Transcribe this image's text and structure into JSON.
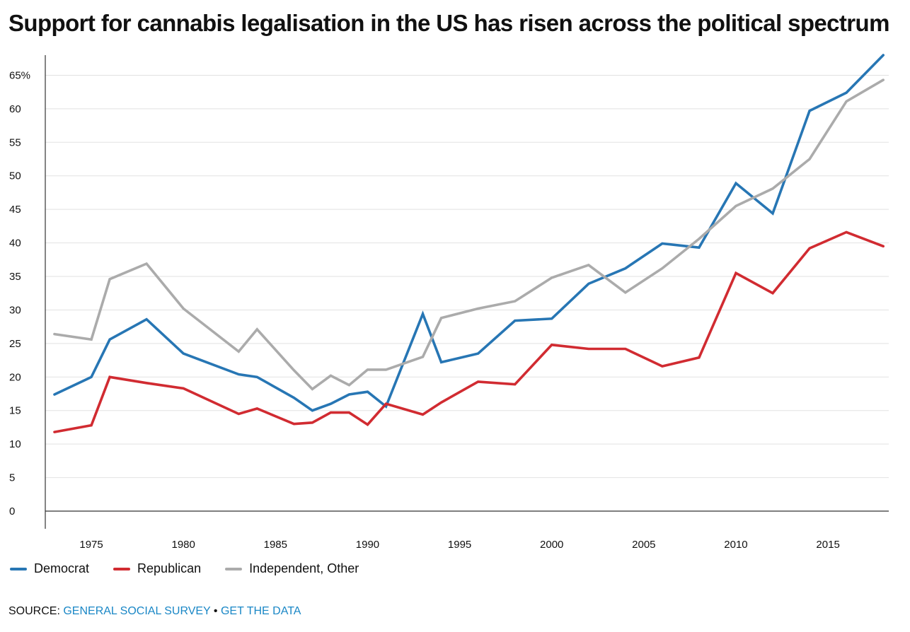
{
  "chart_data": {
    "type": "line",
    "title": "Support for cannabis legalisation in the US has risen across the political spectrum",
    "xlabel": "",
    "ylabel": "",
    "xlim": [
      1972.5,
      2018.3
    ],
    "ylim": [
      0,
      68
    ],
    "y_ticks": [
      0,
      5,
      10,
      15,
      20,
      25,
      30,
      35,
      40,
      45,
      50,
      55,
      60,
      65
    ],
    "y_tick_labels": [
      "0",
      "5",
      "10",
      "15",
      "20",
      "25",
      "30",
      "35",
      "40",
      "45",
      "50",
      "55",
      "60",
      "65%"
    ],
    "x_ticks": [
      1975,
      1980,
      1985,
      1990,
      1995,
      2000,
      2005,
      2010,
      2015
    ],
    "x_tick_labels": [
      "1975",
      "1980",
      "1985",
      "1990",
      "1995",
      "2000",
      "2005",
      "2010",
      "2015"
    ],
    "x": [
      1973,
      1975,
      1976,
      1978,
      1980,
      1983,
      1984,
      1986,
      1987,
      1988,
      1989,
      1990,
      1991,
      1993,
      1994,
      1996,
      1998,
      2000,
      2002,
      2004,
      2006,
      2008,
      2010,
      2012,
      2014,
      2016,
      2018
    ],
    "series": [
      {
        "name": "Democrat",
        "color": "#2776b4",
        "values": [
          17.4,
          20.0,
          25.6,
          28.6,
          23.5,
          20.4,
          20.0,
          16.9,
          15.0,
          16.0,
          17.4,
          17.8,
          15.6,
          29.4,
          22.2,
          23.5,
          28.4,
          28.7,
          33.9,
          36.2,
          39.9,
          39.3,
          48.9,
          44.4,
          59.7,
          62.4,
          68.0
        ]
      },
      {
        "name": "Republican",
        "color": "#d12b31",
        "values": [
          11.8,
          12.8,
          20.0,
          19.1,
          18.3,
          14.5,
          15.3,
          13.0,
          13.2,
          14.7,
          14.7,
          12.9,
          16.0,
          14.4,
          16.2,
          19.3,
          18.9,
          24.8,
          24.2,
          24.2,
          21.6,
          22.9,
          35.5,
          32.5,
          39.2,
          41.6,
          39.5
        ]
      },
      {
        "name": "Independent, Other",
        "color": "#ababab",
        "values": [
          26.4,
          25.6,
          34.6,
          36.9,
          30.2,
          23.8,
          27.1,
          21.0,
          18.2,
          20.2,
          18.8,
          21.1,
          21.1,
          23.0,
          28.8,
          30.2,
          31.3,
          34.8,
          36.7,
          32.6,
          36.2,
          40.6,
          45.5,
          48.1,
          52.5,
          61.1,
          64.3
        ]
      }
    ],
    "legend": [
      "Democrat",
      "Republican",
      "Independent, Other"
    ],
    "legend_position": "bottom-left",
    "grid": true
  },
  "source": {
    "prefix": "SOURCE:",
    "link_text": "GENERAL SOCIAL SURVEY",
    "separator": "•",
    "data_link_text": "GET THE DATA"
  }
}
